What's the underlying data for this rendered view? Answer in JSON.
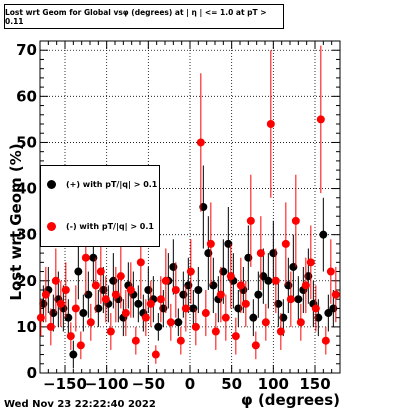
{
  "title": "Lost wrt Geom for Global vsφ (degrees) at | η | <= 1.0 at pT > 0.11",
  "footer_date": "Wed Nov 23 22:22:40 2022",
  "colors": {
    "pos": "#000000",
    "neg": "#ff0000",
    "grid": "#000000"
  },
  "chart_data": {
    "type": "scatter",
    "title": "Lost wrt Geom for Global vsφ (degrees) at | η | <= 1.0 at pT > 0.11",
    "xlabel": "φ (degrees)",
    "ylabel": "Lost wrt Geom (%)",
    "xlim": [
      -180,
      180
    ],
    "ylim": [
      0,
      72
    ],
    "xticks": [
      -150,
      -100,
      -50,
      0,
      50,
      100,
      150
    ],
    "xtick_labels": [
      "−150",
      "−100",
      "−50",
      "0",
      "50",
      "100",
      "150"
    ],
    "yticks": [
      0,
      10,
      20,
      30,
      40,
      50,
      60,
      70
    ],
    "ytick_labels": [
      "0",
      "10",
      "20",
      "30",
      "40",
      "50",
      "60",
      "70"
    ],
    "grid": true,
    "legend_position": "left-middle",
    "series": [
      {
        "name": "(+) with pT/|q| > 0.1",
        "color": "#000000",
        "marker": "circle",
        "x": [
          -176,
          -170,
          -164,
          -158,
          -152,
          -146,
          -140,
          -134,
          -128,
          -122,
          -116,
          -110,
          -104,
          -98,
          -92,
          -86,
          -80,
          -74,
          -68,
          -62,
          -56,
          -50,
          -44,
          -38,
          -32,
          -26,
          -20,
          -14,
          -8,
          -2,
          4,
          10,
          16,
          22,
          28,
          34,
          40,
          46,
          52,
          58,
          64,
          70,
          76,
          82,
          88,
          94,
          100,
          106,
          112,
          118,
          124,
          130,
          136,
          142,
          148,
          154,
          160,
          166,
          172
        ],
        "y": [
          15,
          18,
          13,
          16,
          14,
          12,
          4,
          22,
          13,
          17,
          25,
          14,
          18,
          15,
          20,
          16,
          12,
          19,
          17,
          15,
          13,
          18,
          16,
          10,
          14,
          20,
          23,
          11,
          17,
          19,
          14,
          18,
          36,
          26,
          19,
          16,
          22,
          28,
          20,
          14,
          18,
          25,
          12,
          17,
          21,
          20,
          26,
          15,
          12,
          19,
          23,
          16,
          18,
          21,
          15,
          12,
          30,
          13,
          14
        ],
        "yerr": [
          4,
          5,
          4,
          6,
          5,
          4,
          3,
          6,
          4,
          5,
          6,
          4,
          5,
          4,
          6,
          5,
          4,
          5,
          5,
          4,
          4,
          5,
          5,
          3,
          4,
          6,
          6,
          3,
          5,
          6,
          4,
          5,
          9,
          8,
          6,
          5,
          7,
          8,
          6,
          4,
          5,
          7,
          4,
          5,
          6,
          6,
          7,
          5,
          4,
          6,
          7,
          5,
          5,
          6,
          5,
          4,
          8,
          4,
          4
        ]
      },
      {
        "name": "(-) with pT/|q| > 0.1",
        "color": "#ff0000",
        "marker": "circle",
        "x": [
          -179,
          -173,
          -167,
          -161,
          -155,
          -149,
          -143,
          -137,
          -131,
          -125,
          -119,
          -113,
          -107,
          -101,
          -95,
          -89,
          -83,
          -77,
          -71,
          -65,
          -59,
          -53,
          -47,
          -41,
          -35,
          -29,
          -23,
          -17,
          -11,
          -5,
          1,
          7,
          13,
          19,
          25,
          31,
          37,
          43,
          49,
          55,
          61,
          67,
          73,
          79,
          85,
          91,
          97,
          103,
          109,
          115,
          121,
          127,
          133,
          139,
          145,
          151,
          157,
          163,
          169,
          175
        ],
        "y": [
          12,
          17,
          10,
          20,
          15,
          18,
          8,
          14,
          6,
          25,
          11,
          19,
          22,
          16,
          9,
          17,
          21,
          13,
          18,
          7,
          24,
          12,
          15,
          4,
          16,
          20,
          11,
          18,
          7,
          14,
          22,
          10,
          50,
          13,
          28,
          9,
          17,
          12,
          21,
          8,
          19,
          15,
          33,
          6,
          26,
          11,
          54,
          20,
          9,
          28,
          16,
          33,
          11,
          19,
          24,
          14,
          55,
          7,
          22,
          17
        ],
        "yerr": [
          4,
          6,
          4,
          7,
          5,
          6,
          3,
          5,
          3,
          8,
          4,
          6,
          7,
          5,
          4,
          6,
          7,
          5,
          6,
          3,
          8,
          4,
          5,
          2,
          5,
          7,
          4,
          6,
          3,
          5,
          7,
          4,
          15,
          5,
          9,
          4,
          6,
          5,
          7,
          4,
          6,
          5,
          10,
          3,
          8,
          4,
          16,
          7,
          4,
          9,
          6,
          10,
          4,
          6,
          8,
          5,
          16,
          3,
          7,
          6
        ]
      }
    ]
  }
}
